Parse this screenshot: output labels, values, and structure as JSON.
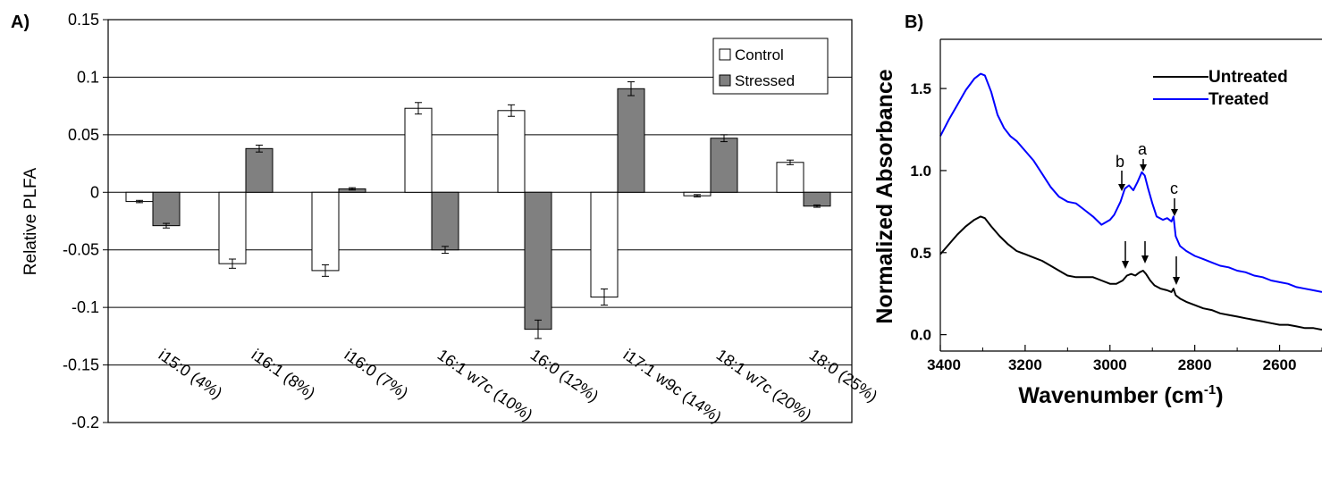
{
  "chart_data": [
    {
      "type": "bar",
      "panel_label": "A)",
      "ylabel": "Relative PLFA",
      "ylim": [
        -0.2,
        0.15
      ],
      "yticks": [
        "0.15",
        "0.1",
        "0.05",
        "0",
        "-0.05",
        "-0.1",
        "-0.15",
        "-0.2"
      ],
      "ytick_values": [
        0.15,
        0.1,
        0.05,
        0,
        -0.05,
        -0.1,
        -0.15,
        -0.2
      ],
      "grid": true,
      "legend_position": "top-right",
      "categories": [
        "i15:0 (4%)",
        "i16:1   (8%)",
        "i16:0 (7%)",
        "16:1 w7c (10%)",
        "16:0 (12%)",
        "i17:1 w9c (14%)",
        "18:1 w7c (20%)",
        "18:0  (25%)"
      ],
      "series": [
        {
          "name": "Control",
          "color": "#ffffff",
          "values": [
            -0.008,
            -0.062,
            -0.068,
            0.073,
            0.071,
            -0.091,
            -0.003,
            0.026
          ],
          "errors": [
            0.001,
            0.004,
            0.005,
            0.005,
            0.005,
            0.007,
            0.001,
            0.002
          ]
        },
        {
          "name": "Stressed",
          "color": "#808080",
          "values": [
            -0.029,
            0.038,
            0.003,
            -0.05,
            -0.119,
            0.09,
            0.047,
            -0.012
          ],
          "errors": [
            0.002,
            0.003,
            0.001,
            0.003,
            0.008,
            0.006,
            0.003,
            0.001
          ]
        }
      ]
    },
    {
      "type": "line",
      "panel_label": "B)",
      "xlabel": "Wavenumber (cm-1)",
      "xlabel_main": "Wavenumber (cm",
      "xlabel_sup": "-1",
      "xlabel_close": ")",
      "ylabel": "Normalized Absorbance",
      "xlim": [
        3400,
        2500
      ],
      "ylim": [
        -0.1,
        1.8
      ],
      "xticks": [
        "3400",
        "3200",
        "3000",
        "2800",
        "2600"
      ],
      "xtick_values": [
        3400,
        3200,
        3000,
        2800,
        2600
      ],
      "yticks": [
        "0.0",
        "0.5",
        "1.0",
        "1.5"
      ],
      "ytick_values": [
        0,
        0.5,
        1.0,
        1.5
      ],
      "legend_position": "top-right",
      "annotations": [
        "a",
        "b",
        "c"
      ],
      "series": [
        {
          "name": "Untreated",
          "color": "#000000",
          "x": [
            3400,
            3380,
            3360,
            3340,
            3320,
            3305,
            3295,
            3280,
            3260,
            3240,
            3220,
            3200,
            3180,
            3160,
            3140,
            3120,
            3100,
            3080,
            3060,
            3040,
            3020,
            3000,
            2985,
            2970,
            2960,
            2950,
            2940,
            2930,
            2922,
            2915,
            2905,
            2895,
            2880,
            2865,
            2855,
            2850,
            2845,
            2835,
            2820,
            2800,
            2780,
            2760,
            2740,
            2720,
            2700,
            2680,
            2660,
            2640,
            2620,
            2600,
            2580,
            2560,
            2540,
            2520,
            2500
          ],
          "y": [
            0.49,
            0.55,
            0.61,
            0.66,
            0.7,
            0.72,
            0.71,
            0.66,
            0.6,
            0.55,
            0.51,
            0.49,
            0.47,
            0.45,
            0.42,
            0.39,
            0.36,
            0.35,
            0.35,
            0.35,
            0.33,
            0.31,
            0.31,
            0.33,
            0.36,
            0.37,
            0.36,
            0.38,
            0.39,
            0.37,
            0.33,
            0.3,
            0.28,
            0.27,
            0.26,
            0.28,
            0.24,
            0.22,
            0.2,
            0.18,
            0.16,
            0.15,
            0.13,
            0.12,
            0.11,
            0.1,
            0.09,
            0.08,
            0.07,
            0.06,
            0.06,
            0.05,
            0.04,
            0.04,
            0.03
          ]
        },
        {
          "name": "Treated",
          "color": "#0000ff",
          "x": [
            3400,
            3380,
            3360,
            3340,
            3320,
            3305,
            3295,
            3280,
            3265,
            3250,
            3235,
            3220,
            3200,
            3180,
            3160,
            3140,
            3120,
            3100,
            3080,
            3060,
            3040,
            3020,
            3000,
            2990,
            2975,
            2965,
            2955,
            2945,
            2935,
            2925,
            2918,
            2910,
            2900,
            2890,
            2875,
            2865,
            2855,
            2850,
            2845,
            2835,
            2820,
            2800,
            2780,
            2760,
            2740,
            2720,
            2700,
            2680,
            2660,
            2640,
            2620,
            2600,
            2580,
            2560,
            2540,
            2520,
            2500
          ],
          "y": [
            1.21,
            1.31,
            1.4,
            1.49,
            1.56,
            1.59,
            1.58,
            1.48,
            1.34,
            1.26,
            1.21,
            1.18,
            1.12,
            1.06,
            0.98,
            0.9,
            0.84,
            0.81,
            0.8,
            0.76,
            0.72,
            0.67,
            0.7,
            0.73,
            0.81,
            0.89,
            0.91,
            0.88,
            0.93,
            0.99,
            0.97,
            0.89,
            0.8,
            0.72,
            0.7,
            0.71,
            0.69,
            0.72,
            0.6,
            0.54,
            0.51,
            0.48,
            0.46,
            0.44,
            0.42,
            0.41,
            0.39,
            0.38,
            0.36,
            0.35,
            0.33,
            0.32,
            0.31,
            0.29,
            0.28,
            0.27,
            0.26
          ]
        }
      ]
    }
  ]
}
